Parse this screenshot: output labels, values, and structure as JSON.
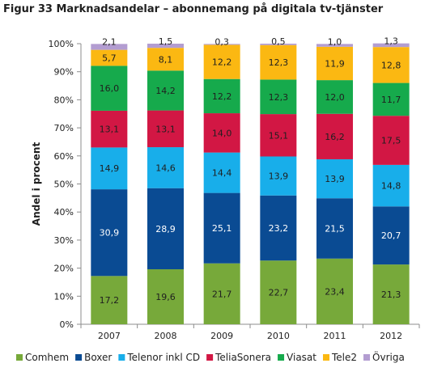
{
  "title": "Figur 33 Marknadsandelar – abonnemang på digitala tv-tjänster",
  "chart_data": {
    "type": "bar",
    "stacked": true,
    "title": "Figur 33 Marknadsandelar – abonnemang på digitala tv-tjänster",
    "xlabel": "",
    "ylabel": "Andel i procent",
    "ylim": [
      0,
      100
    ],
    "yticks": [
      "0%",
      "10%",
      "20%",
      "30%",
      "40%",
      "50%",
      "60%",
      "70%",
      "80%",
      "90%",
      "100%"
    ],
    "grid": false,
    "legend_position": "bottom",
    "categories": [
      "2007",
      "2008",
      "2009",
      "2010",
      "2011",
      "2012"
    ],
    "series": [
      {
        "name": "Comhem",
        "color": "#77a93a",
        "values": [
          17.2,
          19.6,
          21.7,
          22.7,
          23.4,
          21.3
        ],
        "labels": [
          "17,2",
          "19,6",
          "21,7",
          "22,7",
          "23,4",
          "21,3"
        ]
      },
      {
        "name": "Boxer",
        "color": "#0a4b93",
        "values": [
          30.9,
          28.9,
          25.1,
          23.2,
          21.5,
          20.7
        ],
        "labels": [
          "30,9",
          "28,9",
          "25,1",
          "23,2",
          "21,5",
          "20,7"
        ]
      },
      {
        "name": "Telenor inkl CD",
        "color": "#18aeea",
        "values": [
          14.9,
          14.6,
          14.4,
          13.9,
          13.9,
          14.8
        ],
        "labels": [
          "14,9",
          "14,6",
          "14,4",
          "13,9",
          "13,9",
          "14,8"
        ]
      },
      {
        "name": "TeliaSonera",
        "color": "#d21744",
        "values": [
          13.1,
          13.1,
          14.0,
          15.1,
          16.2,
          17.5
        ],
        "labels": [
          "13,1",
          "13,1",
          "14,0",
          "15,1",
          "16,2",
          "17,5"
        ]
      },
      {
        "name": "Viasat",
        "color": "#16aa4c",
        "values": [
          16.0,
          14.2,
          12.2,
          12.3,
          12.0,
          11.7
        ],
        "labels": [
          "16,0",
          "14,2",
          "12,2",
          "12,3",
          "12,0",
          "11,7"
        ]
      },
      {
        "name": "Tele2",
        "color": "#fbb812",
        "values": [
          5.7,
          8.1,
          12.2,
          12.3,
          11.9,
          12.8
        ],
        "labels": [
          "5,7",
          "8,1",
          "12,2",
          "12,3",
          "11,9",
          "12,8"
        ]
      },
      {
        "name": "Övriga",
        "color": "#b39dd1",
        "values": [
          2.1,
          1.5,
          0.3,
          0.5,
          1.0,
          1.3
        ],
        "labels": [
          "2,1",
          "1,5",
          "0,3",
          "0,5",
          "1,0",
          "1,3"
        ]
      }
    ]
  }
}
